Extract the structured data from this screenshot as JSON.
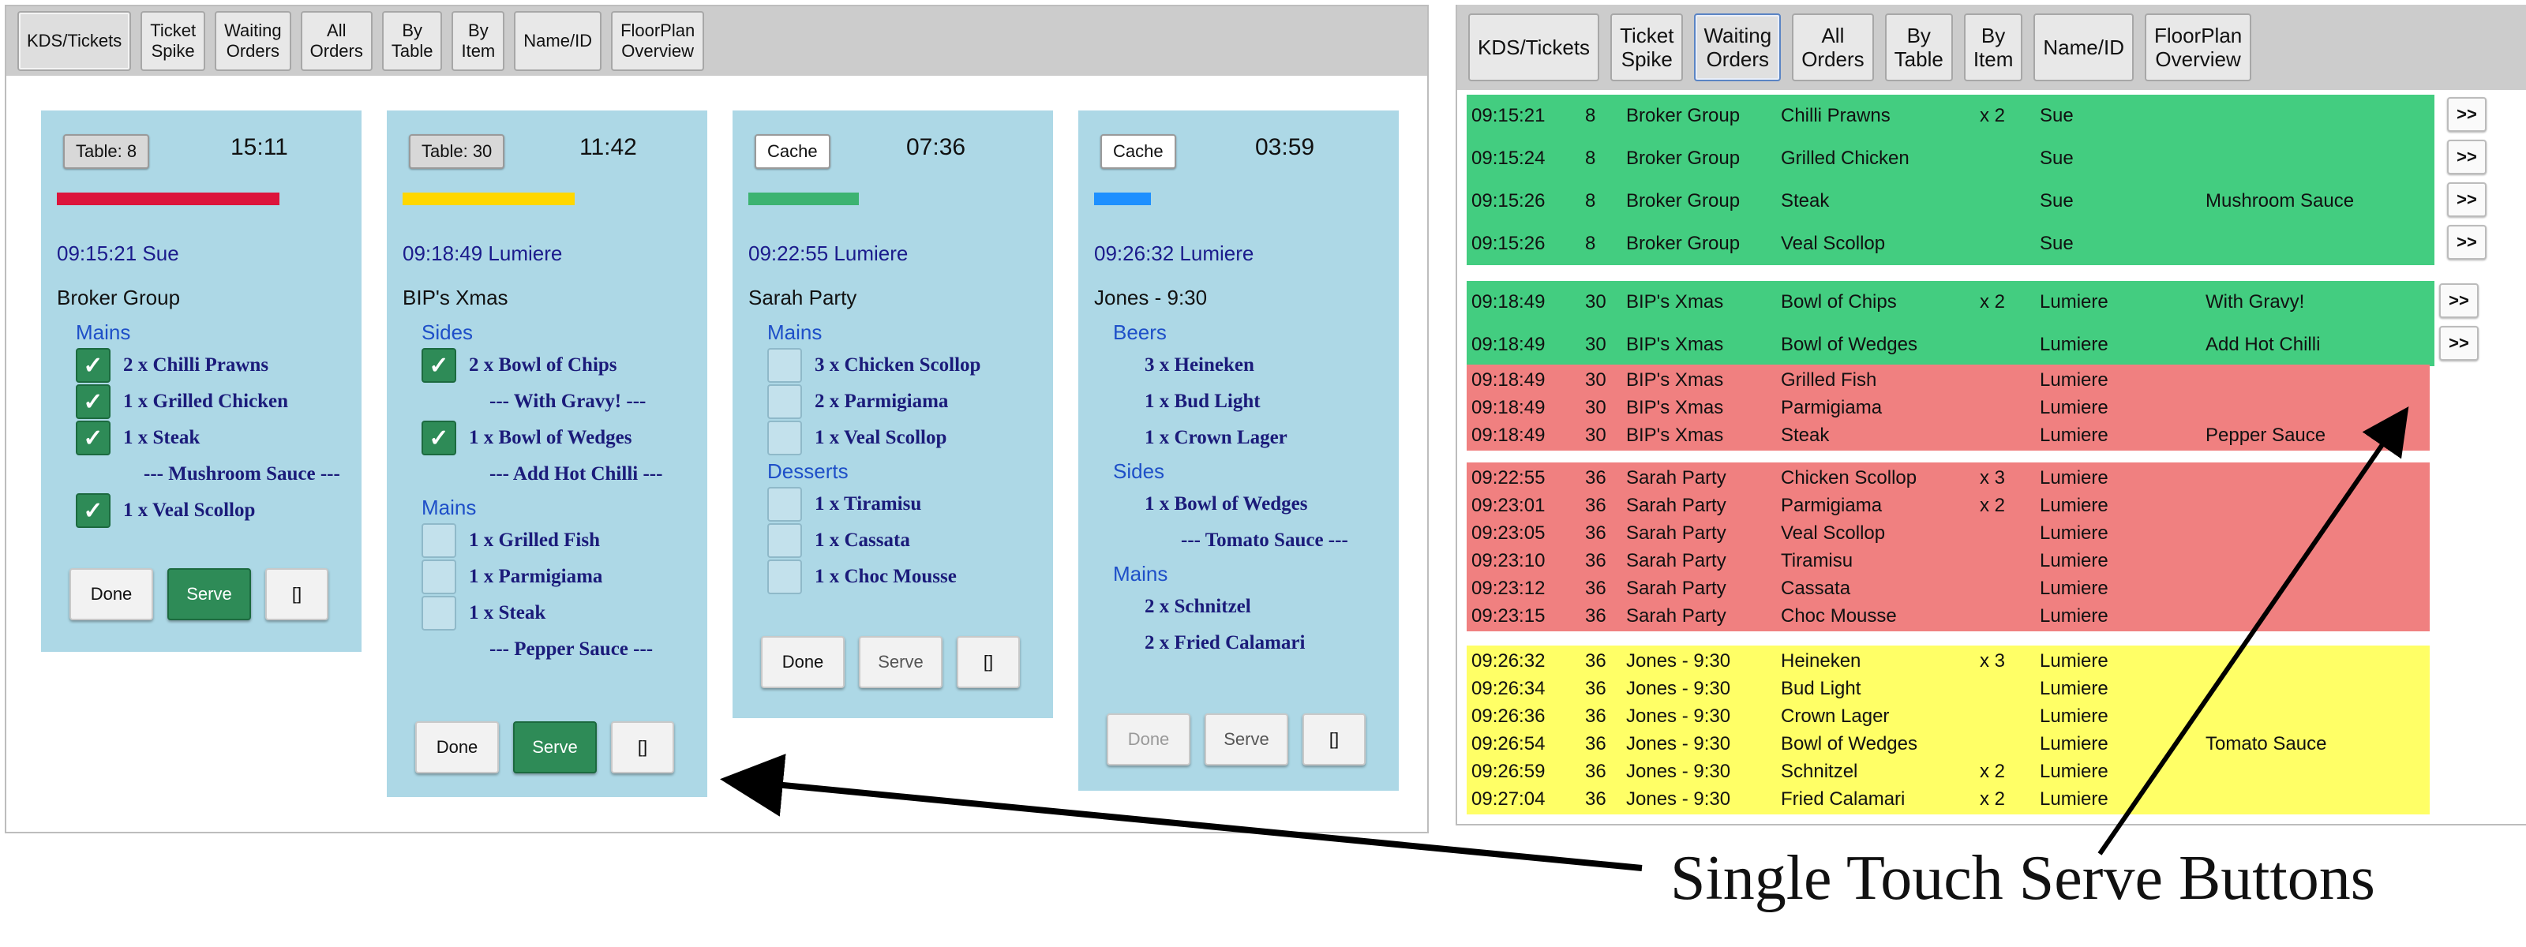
{
  "left_panel": {
    "tabs": [
      "KDS/Tickets",
      "Ticket\nSpike",
      "Waiting\nOrders",
      "All\nOrders",
      "By\nTable",
      "By\nItem",
      "Name/ID",
      "FloorPlan\nOverview"
    ],
    "active_tab": "KDS/Tickets",
    "tickets": [
      {
        "tag": "Table: 8",
        "time": "15:11",
        "bar_color": "#dc143c",
        "when": "09:15:21 Sue",
        "name": "Broker Group",
        "lines": [
          {
            "kind": "cat",
            "text": "Mains"
          },
          {
            "kind": "item",
            "text": "2 x Chilli Prawns",
            "check": "on"
          },
          {
            "kind": "item",
            "text": "1 x Grilled Chicken",
            "check": "on"
          },
          {
            "kind": "item",
            "text": "1 x Steak",
            "check": "on"
          },
          {
            "kind": "mod",
            "text": "--- Mushroom Sauce ---"
          },
          {
            "kind": "item",
            "text": "1 x Veal Scollop",
            "check": "on"
          }
        ],
        "buttons": {
          "done": "Done",
          "serve": "Serve",
          "blank": "[]"
        },
        "serve_active": true,
        "done_disabled": false
      },
      {
        "tag": "Table: 30",
        "time": "11:42",
        "bar_color": "#ffd700",
        "when": "09:18:49 Lumiere",
        "name": "BIP's Xmas",
        "lines": [
          {
            "kind": "cat",
            "text": "Sides"
          },
          {
            "kind": "item",
            "text": "2 x Bowl of Chips",
            "check": "on"
          },
          {
            "kind": "mod",
            "text": "--- With Gravy! ---"
          },
          {
            "kind": "item",
            "text": "1 x Bowl of Wedges",
            "check": "on"
          },
          {
            "kind": "mod",
            "text": "--- Add Hot Chilli ---"
          },
          {
            "kind": "cat",
            "text": "Mains"
          },
          {
            "kind": "item",
            "text": "1 x Grilled Fish",
            "check": "off"
          },
          {
            "kind": "item",
            "text": "1 x Parmigiama",
            "check": "off"
          },
          {
            "kind": "item",
            "text": "1 x Steak",
            "check": "off"
          },
          {
            "kind": "mod",
            "text": "--- Pepper Sauce ---"
          }
        ],
        "buttons": {
          "done": "Done",
          "serve": "Serve",
          "blank": "[]"
        },
        "serve_active": true,
        "done_disabled": false
      },
      {
        "tag": "Cache",
        "time": "07:36",
        "bar_color": "#3cb371",
        "when": "09:22:55 Lumiere",
        "name": "Sarah Party",
        "lines": [
          {
            "kind": "cat",
            "text": "Mains"
          },
          {
            "kind": "item",
            "text": "3 x Chicken Scollop",
            "check": "off"
          },
          {
            "kind": "item",
            "text": "2 x Parmigiama",
            "check": "off"
          },
          {
            "kind": "item",
            "text": "1 x Veal Scollop",
            "check": "off"
          },
          {
            "kind": "cat",
            "text": "Desserts"
          },
          {
            "kind": "item",
            "text": "1 x Tiramisu",
            "check": "off"
          },
          {
            "kind": "item",
            "text": "1 x Cassata",
            "check": "off"
          },
          {
            "kind": "item",
            "text": "1 x Choc Mousse",
            "check": "off"
          }
        ],
        "buttons": {
          "done": "Done",
          "serve": "Serve",
          "blank": "[]"
        },
        "serve_active": false,
        "done_disabled": false
      },
      {
        "tag": "Cache",
        "time": "03:59",
        "bar_color": "#1e90ff",
        "when": "09:26:32 Lumiere",
        "name": "Jones - 9:30",
        "lines": [
          {
            "kind": "cat",
            "text": "Beers"
          },
          {
            "kind": "item",
            "text": "3 x Heineken",
            "check": "none"
          },
          {
            "kind": "item",
            "text": "1 x Bud Light",
            "check": "none"
          },
          {
            "kind": "item",
            "text": "1 x Crown Lager",
            "check": "none"
          },
          {
            "kind": "cat",
            "text": "Sides"
          },
          {
            "kind": "item",
            "text": "1 x Bowl of Wedges",
            "check": "none"
          },
          {
            "kind": "mod",
            "text": "--- Tomato Sauce ---"
          },
          {
            "kind": "cat",
            "text": "Mains"
          },
          {
            "kind": "item",
            "text": "2 x Schnitzel",
            "check": "none"
          },
          {
            "kind": "item",
            "text": "2 x Fried Calamari",
            "check": "none"
          }
        ],
        "buttons": {
          "done": "Done",
          "serve": "Serve",
          "blank": "[]"
        },
        "serve_active": false,
        "done_disabled": true
      }
    ]
  },
  "right_panel": {
    "tabs": [
      "KDS/Tickets",
      "Ticket\nSpike",
      "Waiting\nOrders",
      "All\nOrders",
      "By\nTable",
      "By\nItem",
      "Name/ID",
      "FloorPlan\nOverview"
    ],
    "active_tab": "Waiting\nOrders",
    "forward_label": ">>",
    "colors": {
      "green": "#43cd80",
      "red": "#f08080",
      "yellow": "#ffff66"
    },
    "groups": [
      {
        "color": "green",
        "forward": true,
        "rows": [
          {
            "time": "09:15:21",
            "table": "8",
            "name": "Broker Group",
            "item": "Chilli Prawns",
            "qty": "x 2",
            "server": "Sue",
            "mod": ""
          },
          {
            "time": "09:15:24",
            "table": "8",
            "name": "Broker Group",
            "item": "Grilled Chicken",
            "qty": "",
            "server": "Sue",
            "mod": ""
          },
          {
            "time": "09:15:26",
            "table": "8",
            "name": "Broker Group",
            "item": "Steak",
            "qty": "",
            "server": "Sue",
            "mod": "Mushroom Sauce"
          },
          {
            "time": "09:15:26",
            "table": "8",
            "name": "Broker Group",
            "item": "Veal Scollop",
            "qty": "",
            "server": "Sue",
            "mod": ""
          }
        ]
      },
      {
        "color": "green",
        "forward": true,
        "rows": [
          {
            "time": "09:18:49",
            "table": "30",
            "name": "BIP's Xmas",
            "item": "Bowl of Chips",
            "qty": "x 2",
            "server": "Lumiere",
            "mod": "With Gravy!"
          },
          {
            "time": "09:18:49",
            "table": "30",
            "name": "BIP's Xmas",
            "item": "Bowl of Wedges",
            "qty": "",
            "server": "Lumiere",
            "mod": "Add Hot Chilli"
          }
        ]
      },
      {
        "color": "red",
        "forward": false,
        "rows": [
          {
            "time": "09:18:49",
            "table": "30",
            "name": "BIP's Xmas",
            "item": "Grilled Fish",
            "qty": "",
            "server": "Lumiere",
            "mod": ""
          },
          {
            "time": "09:18:49",
            "table": "30",
            "name": "BIP's Xmas",
            "item": "Parmigiama",
            "qty": "",
            "server": "Lumiere",
            "mod": ""
          },
          {
            "time": "09:18:49",
            "table": "30",
            "name": "BIP's Xmas",
            "item": "Steak",
            "qty": "",
            "server": "Lumiere",
            "mod": "Pepper Sauce"
          }
        ]
      },
      {
        "color": "red",
        "forward": false,
        "rows": [
          {
            "time": "09:22:55",
            "table": "36",
            "name": "Sarah Party",
            "item": "Chicken Scollop",
            "qty": "x 3",
            "server": "Lumiere",
            "mod": ""
          },
          {
            "time": "09:23:01",
            "table": "36",
            "name": "Sarah Party",
            "item": "Parmigiama",
            "qty": "x 2",
            "server": "Lumiere",
            "mod": ""
          },
          {
            "time": "09:23:05",
            "table": "36",
            "name": "Sarah Party",
            "item": "Veal Scollop",
            "qty": "",
            "server": "Lumiere",
            "mod": ""
          },
          {
            "time": "09:23:10",
            "table": "36",
            "name": "Sarah Party",
            "item": "Tiramisu",
            "qty": "",
            "server": "Lumiere",
            "mod": ""
          },
          {
            "time": "09:23:12",
            "table": "36",
            "name": "Sarah Party",
            "item": "Cassata",
            "qty": "",
            "server": "Lumiere",
            "mod": ""
          },
          {
            "time": "09:23:15",
            "table": "36",
            "name": "Sarah Party",
            "item": "Choc Mousse",
            "qty": "",
            "server": "Lumiere",
            "mod": ""
          }
        ]
      },
      {
        "color": "yellow",
        "forward": false,
        "rows": [
          {
            "time": "09:26:32",
            "table": "36",
            "name": "Jones - 9:30",
            "item": "Heineken",
            "qty": "x 3",
            "server": "Lumiere",
            "mod": ""
          },
          {
            "time": "09:26:34",
            "table": "36",
            "name": "Jones - 9:30",
            "item": "Bud Light",
            "qty": "",
            "server": "Lumiere",
            "mod": ""
          },
          {
            "time": "09:26:36",
            "table": "36",
            "name": "Jones - 9:30",
            "item": "Crown Lager",
            "qty": "",
            "server": "Lumiere",
            "mod": ""
          },
          {
            "time": "09:26:54",
            "table": "36",
            "name": "Jones - 9:30",
            "item": "Bowl of Wedges",
            "qty": "",
            "server": "Lumiere",
            "mod": "Tomato Sauce"
          },
          {
            "time": "09:26:59",
            "table": "36",
            "name": "Jones - 9:30",
            "item": "Schnitzel",
            "qty": "x 2",
            "server": "Lumiere",
            "mod": ""
          },
          {
            "time": "09:27:04",
            "table": "36",
            "name": "Jones - 9:30",
            "item": "Fried Calamari",
            "qty": "x 2",
            "server": "Lumiere",
            "mod": ""
          }
        ]
      }
    ]
  },
  "annotation": {
    "caption": "Single Touch Serve Buttons"
  }
}
